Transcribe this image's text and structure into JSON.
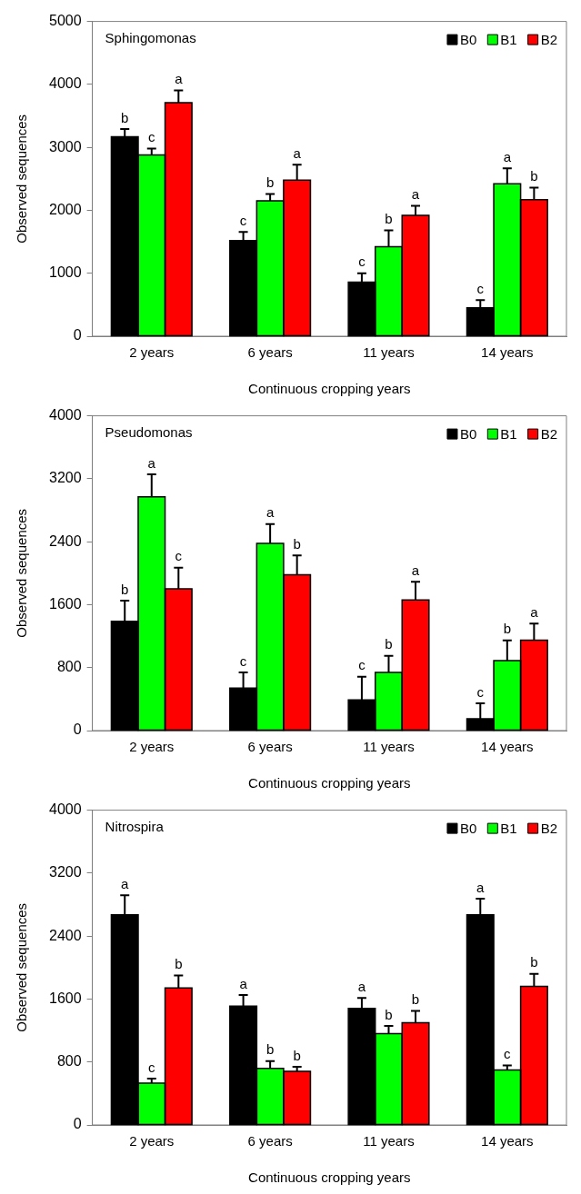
{
  "chart_data": [
    {
      "type": "bar",
      "title": "Sphingomonas",
      "xlabel": "Continuous cropping years",
      "ylabel": "Observed sequences",
      "categories": [
        "2 years",
        "6 years",
        "11 years",
        "14 years"
      ],
      "ylim": [
        0,
        5000
      ],
      "yticks": [
        0,
        1000,
        2000,
        3000,
        4000,
        5000
      ],
      "grid": false,
      "legend": "top right",
      "series": [
        {
          "name": "B0",
          "color": "#000000",
          "values": [
            3170,
            1520,
            860,
            450
          ],
          "errors": [
            120,
            135,
            140,
            125
          ],
          "value_labels": [
            "b",
            "c",
            "c",
            "c"
          ]
        },
        {
          "name": "B1",
          "color": "#00ff00",
          "values": [
            2880,
            2150,
            1420,
            2420
          ],
          "errors": [
            100,
            110,
            260,
            245
          ],
          "value_labels": [
            "c",
            "b",
            "b",
            "a"
          ]
        },
        {
          "name": "B2",
          "color": "#ff0000",
          "values": [
            3710,
            2480,
            1920,
            2170
          ],
          "errors": [
            195,
            245,
            150,
            190
          ],
          "value_labels": [
            "a",
            "a",
            "a",
            "b"
          ]
        }
      ]
    },
    {
      "type": "bar",
      "title": "Pseudomonas",
      "xlabel": "Continuous cropping years",
      "ylabel": "Observed sequences",
      "categories": [
        "2 years",
        "6 years",
        "11 years",
        "14 years"
      ],
      "ylim": [
        0,
        4000
      ],
      "yticks": [
        0,
        800,
        1600,
        2400,
        3200,
        4000
      ],
      "grid": false,
      "legend": "top right",
      "series": [
        {
          "name": "B0",
          "color": "#000000",
          "values": [
            1390,
            540,
            390,
            150
          ],
          "errors": [
            260,
            200,
            295,
            195
          ],
          "value_labels": [
            "b",
            "c",
            "c",
            "c"
          ]
        },
        {
          "name": "B1",
          "color": "#00ff00",
          "values": [
            2970,
            2380,
            740,
            890
          ],
          "errors": [
            285,
            245,
            210,
            255
          ],
          "value_labels": [
            "a",
            "a",
            "b",
            "b"
          ]
        },
        {
          "name": "B2",
          "color": "#ff0000",
          "values": [
            1800,
            1980,
            1660,
            1150
          ],
          "errors": [
            270,
            245,
            230,
            210
          ],
          "value_labels": [
            "c",
            "b",
            "a",
            "a"
          ]
        }
      ]
    },
    {
      "type": "bar",
      "title": "Nitrospira",
      "xlabel": "Continuous cropping years",
      "ylabel": "Observed sequences",
      "categories": [
        "2 years",
        "6 years",
        "11 years",
        "14 years"
      ],
      "ylim": [
        0,
        4000
      ],
      "yticks": [
        0,
        800,
        1600,
        2400,
        3200,
        4000
      ],
      "grid": false,
      "legend": "top right",
      "series": [
        {
          "name": "B0",
          "color": "#000000",
          "values": [
            2670,
            1510,
            1480,
            2670
          ],
          "errors": [
            250,
            140,
            135,
            205
          ],
          "value_labels": [
            "a",
            "a",
            "a",
            "a"
          ]
        },
        {
          "name": "B1",
          "color": "#00ff00",
          "values": [
            530,
            720,
            1160,
            700
          ],
          "errors": [
            60,
            90,
            100,
            55
          ],
          "value_labels": [
            "c",
            "b",
            "b",
            "c"
          ]
        },
        {
          "name": "B2",
          "color": "#ff0000",
          "values": [
            1740,
            680,
            1300,
            1760
          ],
          "errors": [
            160,
            60,
            150,
            160
          ],
          "value_labels": [
            "b",
            "b",
            "b",
            "b"
          ]
        }
      ]
    }
  ]
}
